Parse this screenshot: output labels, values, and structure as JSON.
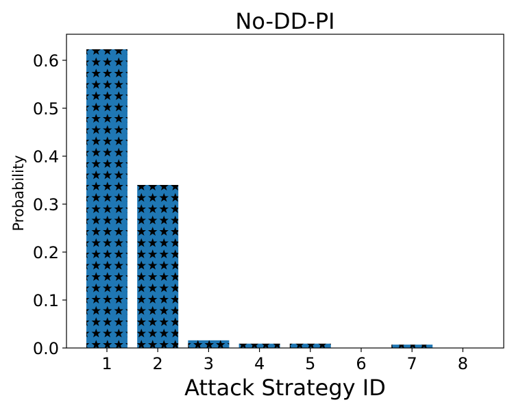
{
  "chart_data": {
    "type": "bar",
    "title": "No-DD-PI",
    "xlabel": "Attack Strategy ID",
    "ylabel": "Probability",
    "categories": [
      "1",
      "2",
      "3",
      "4",
      "5",
      "6",
      "7",
      "8"
    ],
    "values": [
      0.623,
      0.34,
      0.016,
      0.009,
      0.009,
      0.0,
      0.007,
      0.0
    ],
    "ylim": [
      0,
      0.65
    ],
    "yticks": [
      "0.0",
      "0.1",
      "0.2",
      "0.3",
      "0.4",
      "0.5",
      "0.6"
    ],
    "bar_color": "#1f77b4",
    "hatch": "star-icon",
    "hatch_color": "#000000",
    "grid": false,
    "legend": "none"
  }
}
